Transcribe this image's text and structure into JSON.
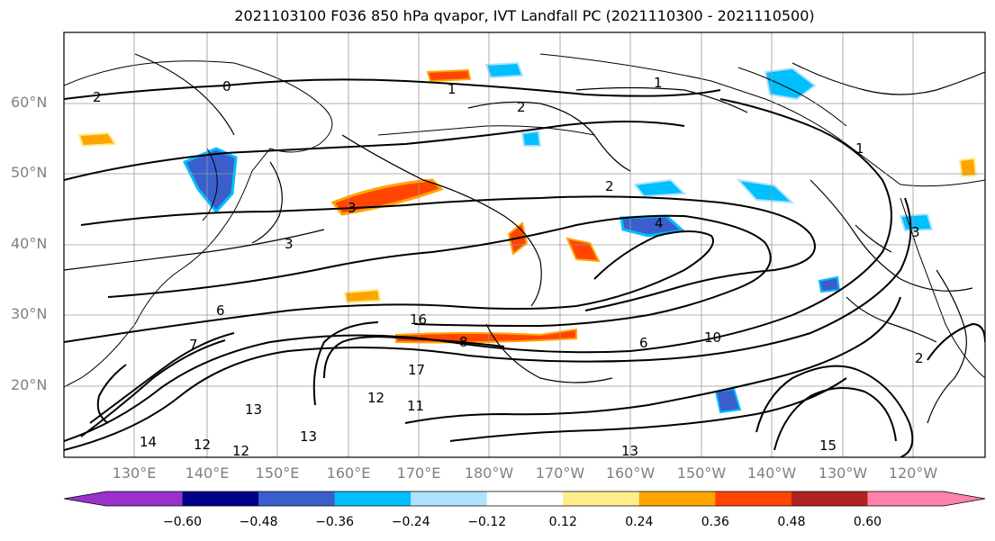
{
  "title": "2021103100 F036 850 hPa qvapor, IVT Landfall PC (2021110300 - 2021110500)",
  "lat_labels": [
    "60°N",
    "50°N",
    "40°N",
    "30°N",
    "20°N"
  ],
  "lon_labels": [
    "130°E",
    "140°E",
    "150°E",
    "160°E",
    "170°E",
    "180°W",
    "170°W",
    "160°W",
    "150°W",
    "140°W",
    "130°W",
    "120°W"
  ],
  "colorbar": {
    "tick_labels": [
      "−0.60",
      "−0.48",
      "−0.36",
      "−0.24",
      "−0.12",
      "0.12",
      "0.24",
      "0.36",
      "0.48",
      "0.60"
    ],
    "colors": [
      "#9932cc",
      "#00008b",
      "#3a5fcd",
      "#00bfff",
      "#b0e2ff",
      "#ffffff",
      "#ffec8b",
      "#ffa500",
      "#ff4500",
      "#b22222",
      "#ff82ab"
    ]
  },
  "contour_labels": [
    "2",
    "0",
    "1",
    "2",
    "1",
    "2",
    "3",
    "3",
    "3",
    "4",
    "2",
    "6",
    "6",
    "7",
    "8",
    "10",
    "11",
    "12",
    "13",
    "13",
    "14",
    "12",
    "12",
    "13",
    "15",
    "16",
    "17",
    "1"
  ],
  "shading_colors": {
    "negative": "#00bfff",
    "negative_light": "#b0e2ff",
    "positive": "#ffa500",
    "positive_strong": "#ff4500",
    "positive_light": "#ffec8b"
  }
}
